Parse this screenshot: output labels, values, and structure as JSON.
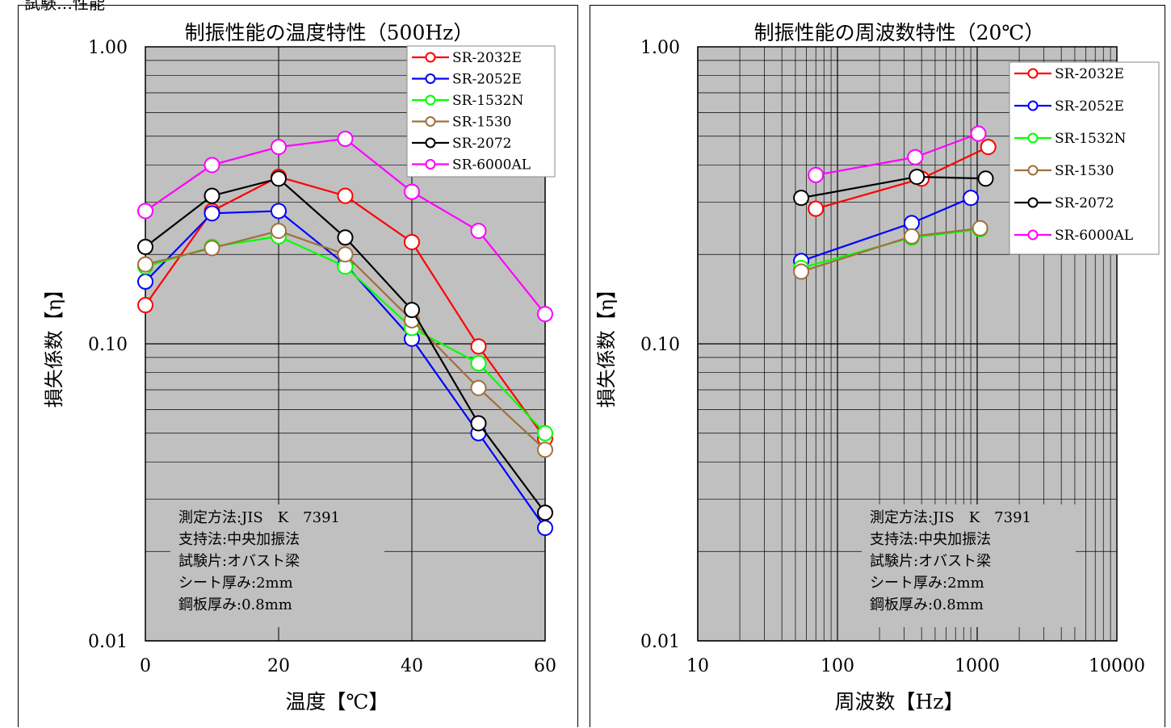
{
  "page_header": "試験…性能",
  "colors": {
    "plot_bg": "#c0c0c0",
    "SR-2032E": "#ff0000",
    "SR-2052E": "#0000ff",
    "SR-1532N": "#00ff00",
    "SR-1530": "#a0703c",
    "SR-2072": "#000000",
    "SR-6000AL": "#ff00ff"
  },
  "chart_data": [
    {
      "type": "line",
      "title": "制振性能の温度特性（500Hz）",
      "xlabel": "温度【℃】",
      "ylabel": "損失係数【η】",
      "xscale": "linear",
      "yscale": "log",
      "xlim": [
        0,
        60
      ],
      "ylim": [
        0.01,
        1.0
      ],
      "xticks": [
        "0",
        "20",
        "40",
        "60"
      ],
      "yticks": [
        "0.01",
        "0.10",
        "1.00"
      ],
      "grid": true,
      "legend_position": "top-right",
      "series": [
        {
          "name": "SR-2032E",
          "x": [
            0,
            10,
            20,
            30,
            40,
            50,
            60
          ],
          "y": [
            0.135,
            0.28,
            0.365,
            0.315,
            0.22,
            0.098,
            0.048
          ]
        },
        {
          "name": "SR-2052E",
          "x": [
            0,
            10,
            20,
            30,
            40,
            50,
            60
          ],
          "y": [
            0.162,
            0.275,
            0.28,
            0.185,
            0.104,
            0.05,
            0.024
          ]
        },
        {
          "name": "SR-1532N",
          "x": [
            0,
            10,
            20,
            30,
            40,
            50,
            60
          ],
          "y": [
            0.182,
            0.212,
            0.23,
            0.182,
            0.113,
            0.086,
            0.05
          ]
        },
        {
          "name": "SR-1530",
          "x": [
            0,
            10,
            20,
            30,
            40,
            50,
            60
          ],
          "y": [
            0.185,
            0.21,
            0.24,
            0.2,
            0.12,
            0.071,
            0.044
          ]
        },
        {
          "name": "SR-2072",
          "x": [
            0,
            10,
            20,
            30,
            40,
            50,
            60
          ],
          "y": [
            0.212,
            0.315,
            0.36,
            0.228,
            0.13,
            0.054,
            0.027
          ]
        },
        {
          "name": "SR-6000AL",
          "x": [
            0,
            10,
            20,
            30,
            40,
            50,
            60
          ],
          "y": [
            0.28,
            0.4,
            0.46,
            0.49,
            0.325,
            0.24,
            0.126
          ]
        }
      ],
      "annotation": [
        "測定方法:JIS　K　7391",
        "支持法:中央加振法",
        "試験片:オバスト梁",
        "シート厚み:2mm",
        "鋼板厚み:0.8mm"
      ]
    },
    {
      "type": "line",
      "title": "制振性能の周波数特性（20℃）",
      "xlabel": "周波数【Hz】",
      "ylabel": "損失係数【η】",
      "xscale": "log",
      "yscale": "log",
      "xlim": [
        10,
        10000
      ],
      "ylim": [
        0.01,
        1.0
      ],
      "xticks": [
        "10",
        "100",
        "1000",
        "10000"
      ],
      "yticks": [
        "0.01",
        "0.10",
        "1.00"
      ],
      "grid": true,
      "legend_position": "top-right",
      "series": [
        {
          "name": "SR-2032E",
          "x": [
            70,
            400,
            1200
          ],
          "y": [
            0.285,
            0.36,
            0.46
          ]
        },
        {
          "name": "SR-2052E",
          "x": [
            55,
            340,
            900
          ],
          "y": [
            0.19,
            0.255,
            0.31
          ]
        },
        {
          "name": "SR-1532N",
          "x": [
            55,
            340,
            1050
          ],
          "y": [
            0.18,
            0.228,
            0.243
          ]
        },
        {
          "name": "SR-1530",
          "x": [
            55,
            340,
            1050
          ],
          "y": [
            0.175,
            0.23,
            0.245
          ]
        },
        {
          "name": "SR-2072",
          "x": [
            55,
            370,
            1150
          ],
          "y": [
            0.31,
            0.365,
            0.36
          ]
        },
        {
          "name": "SR-6000AL",
          "x": [
            70,
            360,
            1020
          ],
          "y": [
            0.37,
            0.425,
            0.51
          ]
        }
      ],
      "annotation": [
        "測定方法:JIS　K　7391",
        "支持法:中央加振法",
        "試験片:オバスト梁",
        "シート厚み:2mm",
        "鋼板厚み:0.8mm"
      ]
    }
  ]
}
